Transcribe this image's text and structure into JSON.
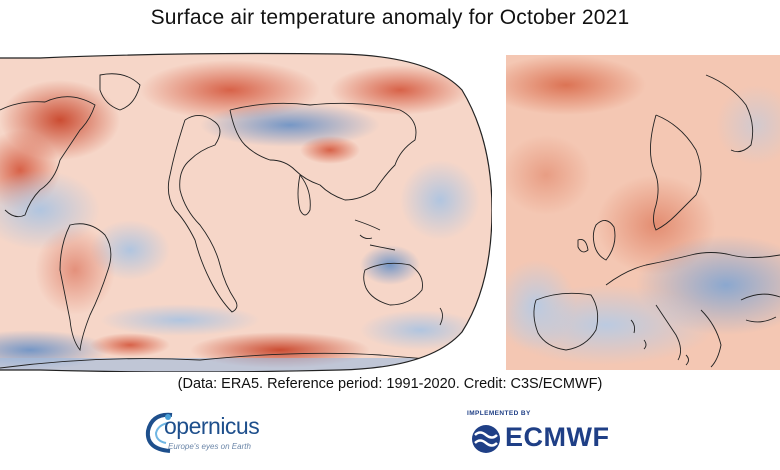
{
  "title": "Surface air temperature anomaly for October 2021",
  "maps": {
    "world_icon": "global-temperature-anomaly-map",
    "europe_icon": "europe-temperature-anomaly-map",
    "colors": {
      "strong_warm": "#c9452a",
      "warm": "#ef9a7a",
      "light_warm": "#f9d5c4",
      "neutral": "#f6ece8",
      "cool": "#a9c3e2",
      "strong_cool": "#3f73b6",
      "coastline": "#222222"
    }
  },
  "caption": "(Data: ERA5.  Reference period: 1991-2020.  Credit: C3S/ECMWF)",
  "logos": {
    "copernicus_word": "opernicus",
    "copernicus_tagline": "Europe's eyes on Earth",
    "ecmwf_implemented": "IMPLEMENTED BY",
    "ecmwf_word": "ECMWF"
  }
}
